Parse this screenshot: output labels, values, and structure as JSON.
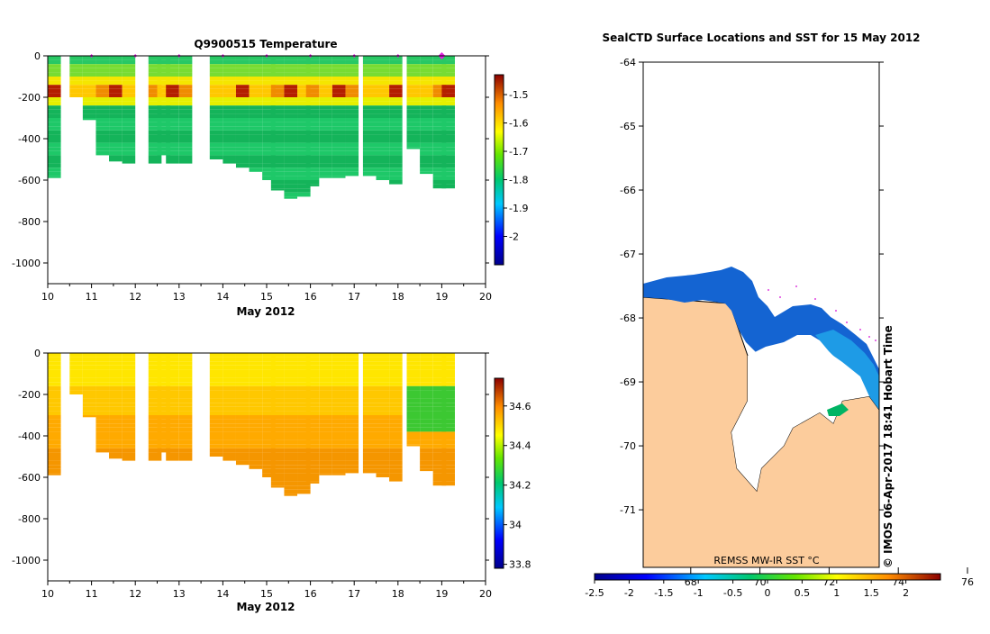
{
  "chart_data": [
    {
      "type": "heatmap",
      "title": "Q9900515  Temperature",
      "xlabel": "May 2012",
      "ylabel": "",
      "xlim": [
        10,
        20
      ],
      "ylim": [
        -1100,
        0
      ],
      "x_ticks": [
        "10",
        "11",
        "12",
        "13",
        "14",
        "15",
        "16",
        "17",
        "18",
        "19",
        "20"
      ],
      "y_ticks": [
        "0",
        "-200",
        "-400",
        "-600",
        "-800",
        "-1000"
      ],
      "colorbar": {
        "min": -2.1,
        "max": -1.43,
        "ticks": [
          "-1.5",
          "-1.6",
          "-1.7",
          "-1.8",
          "-1.9",
          "-2"
        ]
      },
      "station_markers_x": [
        11,
        12,
        13,
        14,
        15,
        16,
        17,
        18,
        19
      ],
      "profiles": [
        {
          "x": 10.0,
          "depth": 590
        },
        {
          "x": 10.5,
          "depth": 200
        },
        {
          "x": 10.8,
          "depth": 310
        },
        {
          "x": 11.1,
          "depth": 480
        },
        {
          "x": 11.4,
          "depth": 510
        },
        {
          "x": 11.7,
          "depth": 520
        },
        {
          "x": 12.3,
          "depth": 520
        },
        {
          "x": 12.5,
          "depth": 480
        },
        {
          "x": 12.7,
          "depth": 520
        },
        {
          "x": 13.0,
          "depth": 520
        },
        {
          "x": 13.7,
          "depth": 500
        },
        {
          "x": 14.0,
          "depth": 520
        },
        {
          "x": 14.3,
          "depth": 540
        },
        {
          "x": 14.6,
          "depth": 560
        },
        {
          "x": 14.9,
          "depth": 600
        },
        {
          "x": 15.1,
          "depth": 650
        },
        {
          "x": 15.4,
          "depth": 690
        },
        {
          "x": 15.7,
          "depth": 680
        },
        {
          "x": 15.9,
          "depth": 630
        },
        {
          "x": 16.2,
          "depth": 590
        },
        {
          "x": 16.5,
          "depth": 590
        },
        {
          "x": 16.8,
          "depth": 580
        },
        {
          "x": 17.2,
          "depth": 580
        },
        {
          "x": 17.5,
          "depth": 600
        },
        {
          "x": 17.8,
          "depth": 620
        },
        {
          "x": 18.2,
          "depth": 450
        },
        {
          "x": 18.5,
          "depth": 570
        },
        {
          "x": 18.8,
          "depth": 640
        },
        {
          "x": 19.0,
          "depth": 640
        }
      ]
    },
    {
      "type": "heatmap",
      "title": "",
      "xlabel": "May 2012",
      "ylabel": "",
      "xlim": [
        10,
        20
      ],
      "ylim": [
        -1100,
        0
      ],
      "x_ticks": [
        "10",
        "11",
        "12",
        "13",
        "14",
        "15",
        "16",
        "17",
        "18",
        "19",
        "20"
      ],
      "y_ticks": [
        "0",
        "-200",
        "-400",
        "-600",
        "-800",
        "-1000"
      ],
      "colorbar": {
        "min": 33.78,
        "max": 34.74,
        "ticks": [
          "34.6",
          "34.4",
          "34.2",
          "34",
          "33.8"
        ]
      }
    },
    {
      "type": "heatmap",
      "title": "SealCTD Surface Locations and SST for 15 May 2012",
      "ylim": [
        -71.9,
        -64
      ],
      "y_ticks": [
        "-64",
        "-65",
        "-66",
        "-67",
        "-68",
        "-69",
        "-70",
        "-71"
      ],
      "colorbar": {
        "min": -2.5,
        "max": 2.5,
        "ticks": [
          "-2.5",
          "-2",
          "-1.5",
          "-1",
          "-0.5",
          "0",
          "0.5",
          "1",
          "1.5",
          "2"
        ],
        "label": "REMSS MW-IR SST °C",
        "secondary_ticks": [
          "68",
          "70",
          "72",
          "74",
          "76"
        ]
      },
      "credit": "© IMOS 06-Apr-2017 18:41 Hobart Time"
    }
  ]
}
